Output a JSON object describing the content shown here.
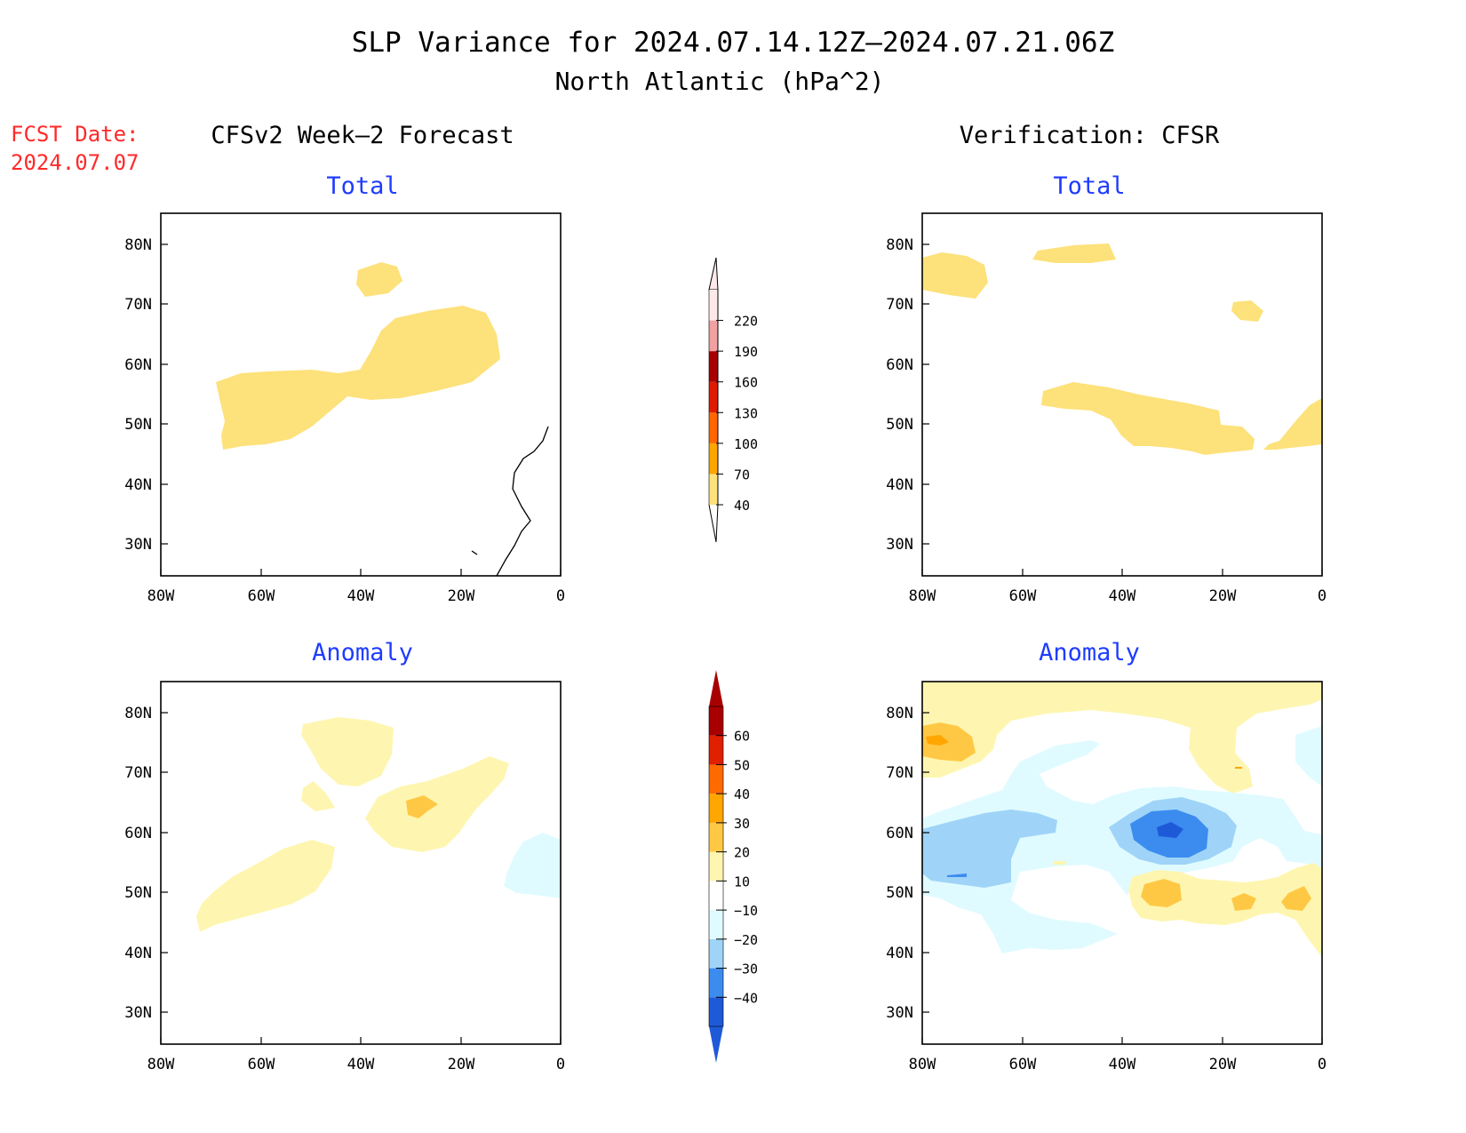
{
  "title": {
    "line1": "SLP Variance for 2024.07.14.12Z–2024.07.21.06Z",
    "line2": "North Atlantic (hPa^2)"
  },
  "fcst_date": {
    "label": "FCST Date:",
    "value": "2024.07.07"
  },
  "columns": {
    "left": "CFSv2 Week–2 Forecast",
    "right": "Verification: CFSR"
  },
  "panel_titles": {
    "total": "Total",
    "anomaly": "Anomaly"
  },
  "axes": {
    "lon_labels": [
      "80W",
      "60W",
      "40W",
      "20W",
      "0"
    ],
    "lat_labels": [
      "80N",
      "70N",
      "60N",
      "50N",
      "40N",
      "30N"
    ]
  },
  "colors": {
    "title_blue": "#1f3cff",
    "fcst_red": "#ff2a2a",
    "total_scale": [
      "#fde17a",
      "#ffa500",
      "#ff6600",
      "#e01a00",
      "#a80000",
      "#f2a0a0",
      "#fde9e9"
    ],
    "anomaly_pos": [
      "#fef6b0",
      "#ffc844",
      "#ffa600",
      "#ff6a00",
      "#e02000",
      "#a80000"
    ],
    "anomaly_neg": [
      "#e0fbff",
      "#9fd4f8",
      "#3c8cf0",
      "#1e5ad8"
    ]
  },
  "colorbars": {
    "total": {
      "labels": [
        "40",
        "70",
        "100",
        "130",
        "160",
        "190",
        "220"
      ]
    },
    "anomaly": {
      "labels": [
        "−40",
        "−30",
        "−20",
        "−10",
        "10",
        "20",
        "30",
        "40",
        "50",
        "60"
      ]
    }
  }
}
